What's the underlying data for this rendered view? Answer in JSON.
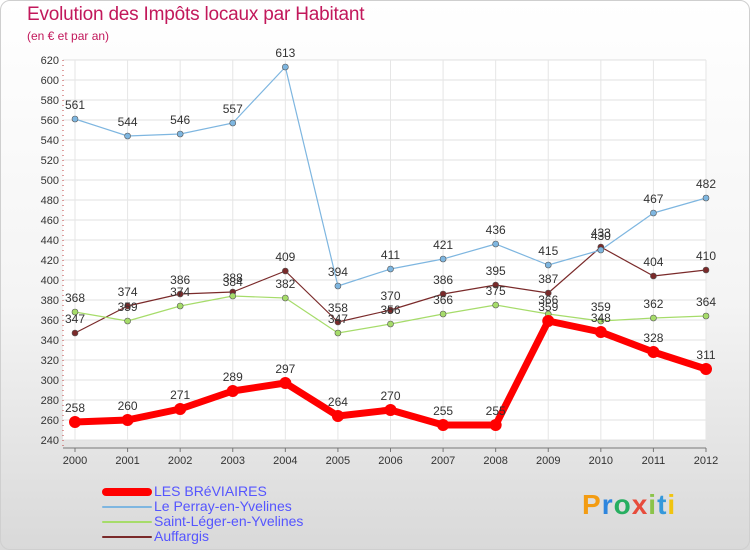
{
  "page": {
    "title": "Evolution des Impôts locaux par Habitant",
    "subtitle": "(en € et par an)",
    "logo_letters": [
      "P",
      "r",
      "o",
      "x",
      "i",
      "t",
      "i"
    ],
    "logo_colors": [
      "#f39c12",
      "#2e86de",
      "#27ae60",
      "#e74c3c",
      "#8bc34a",
      "#3498db",
      "#f1c40f"
    ]
  },
  "chart_data": {
    "type": "line",
    "title": "Evolution des Impôts locaux par Habitant",
    "subtitle": "(en € et par an)",
    "xlabel": "",
    "ylabel": "",
    "x": [
      "2000",
      "2001",
      "2002",
      "2003",
      "2004",
      "2005",
      "2006",
      "2007",
      "2008",
      "2009",
      "2010",
      "2011",
      "2012"
    ],
    "ylim": [
      240,
      620
    ],
    "yticks": [
      240,
      260,
      280,
      300,
      320,
      340,
      360,
      380,
      400,
      420,
      440,
      460,
      480,
      500,
      520,
      540,
      560,
      580,
      600,
      620
    ],
    "grid": true,
    "legend_position": "bottom-left",
    "series": [
      {
        "name": "LES BRéVIAIRES",
        "color": "#ff0000",
        "values": [
          258,
          260,
          271,
          289,
          297,
          264,
          270,
          255,
          255,
          359,
          348,
          328,
          311
        ]
      },
      {
        "name": "Le Perray-en-Yvelines",
        "color": "#7eb6e0",
        "values": [
          561,
          544,
          546,
          557,
          613,
          394,
          411,
          421,
          436,
          415,
          430,
          467,
          482
        ]
      },
      {
        "name": "Saint-Léger-en-Yvelines",
        "color": "#a6dc6a",
        "values": [
          368,
          359,
          374,
          384,
          382,
          347,
          356,
          366,
          375,
          366,
          359,
          362,
          364
        ]
      },
      {
        "name": "Auffargis",
        "color": "#7a2a2a",
        "values": [
          347,
          374,
          386,
          388,
          409,
          358,
          370,
          386,
          395,
          387,
          433,
          404,
          410
        ]
      }
    ]
  }
}
